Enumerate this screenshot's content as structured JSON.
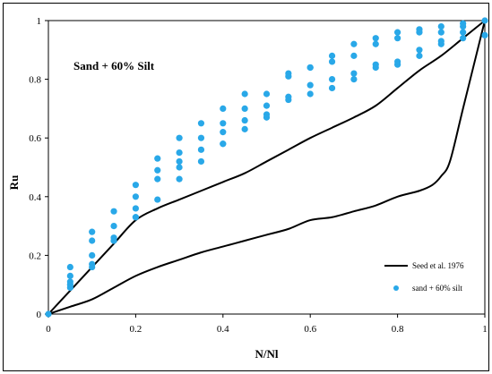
{
  "chart_data": {
    "type": "scatter",
    "title": "",
    "annotation": "Sand + 60% Silt",
    "xlabel": "N/Nl",
    "ylabel": "Ru",
    "xlim": [
      0,
      1
    ],
    "ylim": [
      0,
      1
    ],
    "xticks": [
      "0",
      "0.2",
      "0.4",
      "0.6",
      "0.8",
      "1"
    ],
    "xtick_values": [
      0,
      0.2,
      0.4,
      0.6,
      0.8,
      1
    ],
    "yticks": [
      "0",
      "0.2",
      "0.4",
      "0.6",
      "0.8",
      "1"
    ],
    "ytick_values": [
      0,
      0.2,
      0.4,
      0.6,
      0.8,
      1
    ],
    "grid": false,
    "legend_position": "bottom-right",
    "series": [
      {
        "name": "Seed et al. 1976",
        "kind": "line",
        "color": "#000000",
        "curves": [
          {
            "label": "upper",
            "x": [
              0,
              0.05,
              0.1,
              0.15,
              0.2,
              0.25,
              0.3,
              0.35,
              0.4,
              0.45,
              0.5,
              0.55,
              0.6,
              0.65,
              0.7,
              0.75,
              0.8,
              0.85,
              0.9,
              0.95,
              1.0
            ],
            "y": [
              0,
              0.08,
              0.16,
              0.24,
              0.32,
              0.36,
              0.39,
              0.42,
              0.45,
              0.48,
              0.52,
              0.56,
              0.6,
              0.635,
              0.67,
              0.71,
              0.77,
              0.83,
              0.88,
              0.94,
              1.0
            ]
          },
          {
            "label": "lower",
            "x": [
              0,
              0.05,
              0.1,
              0.15,
              0.2,
              0.25,
              0.3,
              0.35,
              0.4,
              0.45,
              0.5,
              0.55,
              0.6,
              0.65,
              0.7,
              0.75,
              0.8,
              0.85,
              0.88,
              0.9,
              0.92,
              0.95,
              1.0
            ],
            "y": [
              0,
              0.025,
              0.05,
              0.09,
              0.13,
              0.16,
              0.185,
              0.21,
              0.23,
              0.25,
              0.27,
              0.29,
              0.32,
              0.33,
              0.35,
              0.37,
              0.4,
              0.42,
              0.44,
              0.47,
              0.52,
              0.7,
              1.0
            ]
          }
        ]
      },
      {
        "name": "sand + 60% silt",
        "kind": "scatter",
        "color": "#29a8e8",
        "x": [
          0,
          0.05,
          0.05,
          0.05,
          0.05,
          0.05,
          0.1,
          0.1,
          0.1,
          0.1,
          0.1,
          0.15,
          0.15,
          0.15,
          0.15,
          0.15,
          0.2,
          0.2,
          0.2,
          0.2,
          0.2,
          0.25,
          0.25,
          0.25,
          0.25,
          0.3,
          0.3,
          0.3,
          0.3,
          0.3,
          0.35,
          0.35,
          0.35,
          0.35,
          0.4,
          0.4,
          0.4,
          0.4,
          0.4,
          0.45,
          0.45,
          0.45,
          0.45,
          0.5,
          0.5,
          0.5,
          0.5,
          0.55,
          0.55,
          0.55,
          0.55,
          0.6,
          0.6,
          0.6,
          0.6,
          0.65,
          0.65,
          0.65,
          0.65,
          0.7,
          0.7,
          0.7,
          0.7,
          0.75,
          0.75,
          0.75,
          0.75,
          0.8,
          0.8,
          0.8,
          0.8,
          0.85,
          0.85,
          0.85,
          0.85,
          0.9,
          0.9,
          0.9,
          0.9,
          0.95,
          0.95,
          0.95,
          0.95,
          1.0,
          1.0
        ],
        "y": [
          0,
          0.16,
          0.13,
          0.11,
          0.1,
          0.09,
          0.28,
          0.25,
          0.2,
          0.17,
          0.16,
          0.35,
          0.3,
          0.26,
          0.25,
          0.25,
          0.44,
          0.4,
          0.36,
          0.33,
          0.33,
          0.53,
          0.49,
          0.46,
          0.39,
          0.6,
          0.55,
          0.52,
          0.5,
          0.46,
          0.65,
          0.6,
          0.56,
          0.52,
          0.7,
          0.65,
          0.62,
          0.58,
          0.58,
          0.75,
          0.7,
          0.66,
          0.63,
          0.75,
          0.71,
          0.68,
          0.67,
          0.82,
          0.81,
          0.74,
          0.73,
          0.84,
          0.84,
          0.78,
          0.75,
          0.88,
          0.86,
          0.8,
          0.77,
          0.92,
          0.88,
          0.82,
          0.8,
          0.94,
          0.92,
          0.85,
          0.84,
          0.96,
          0.94,
          0.86,
          0.85,
          0.97,
          0.96,
          0.9,
          0.88,
          0.98,
          0.96,
          0.93,
          0.92,
          0.99,
          0.98,
          0.96,
          0.94,
          1.0,
          0.95
        ]
      }
    ]
  }
}
